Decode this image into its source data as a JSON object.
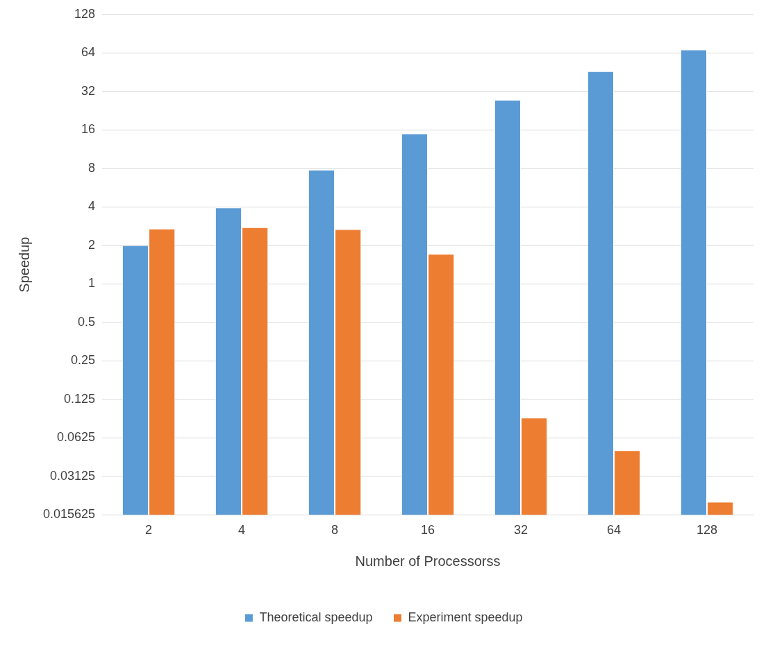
{
  "chart_data": {
    "type": "bar",
    "xlabel": "Number of Processorss",
    "ylabel": "Speedup",
    "categories": [
      "2",
      "4",
      "8",
      "16",
      "32",
      "64",
      "128"
    ],
    "series": [
      {
        "name": "Theoretical speedup",
        "color": "#5b9bd5",
        "values": [
          2,
          3.95,
          7.8,
          15,
          27.5,
          46,
          68
        ]
      },
      {
        "name": "Experiment speedup",
        "color": "#ed7d31",
        "values": [
          2.7,
          2.77,
          2.68,
          1.72,
          0.09,
          0.05,
          0.0198
        ]
      }
    ],
    "log": "y",
    "ylim": [
      0.015625,
      128
    ],
    "yticks": [
      0.015625,
      0.03125,
      0.0625,
      0.125,
      0.25,
      0.5,
      1,
      2,
      4,
      8,
      16,
      32,
      64,
      128
    ],
    "grid": "y",
    "legend": "bottom"
  }
}
